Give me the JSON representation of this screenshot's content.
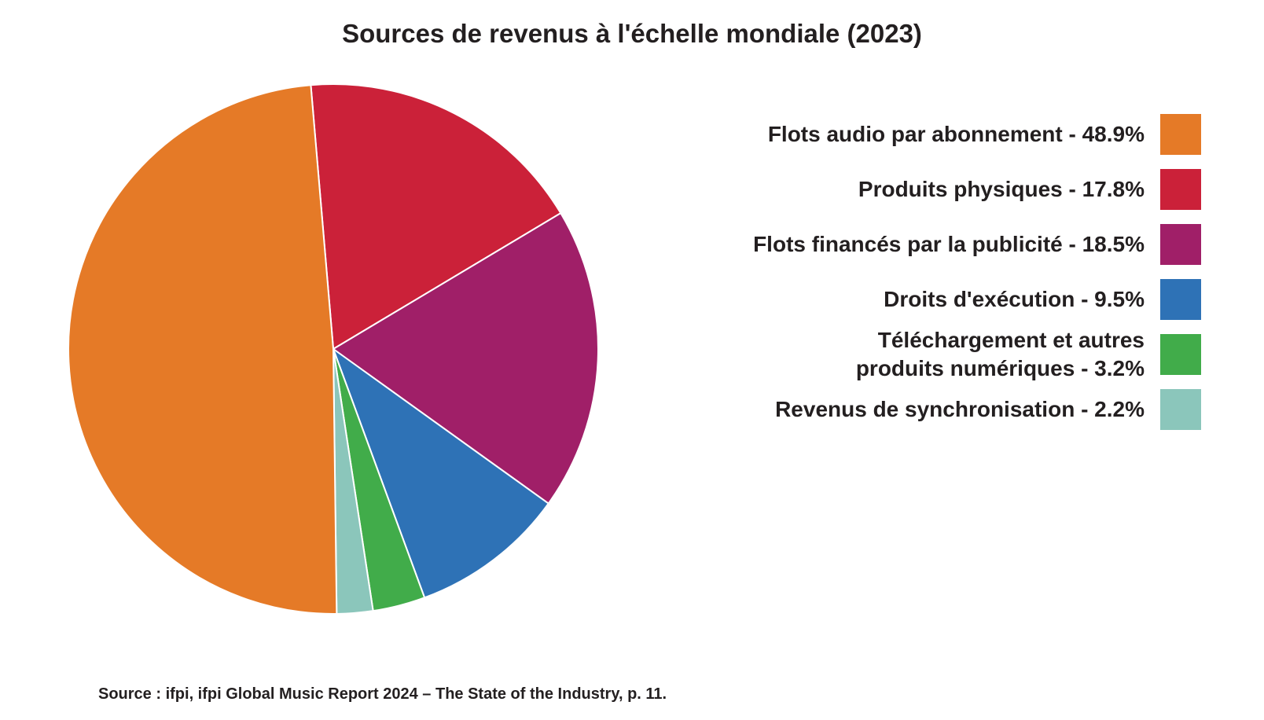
{
  "chart_data": {
    "type": "pie",
    "title": "Sources de revenus à l'échelle mondiale (2023)",
    "slices": [
      {
        "label": "Flots audio par abonnement - 48.9%",
        "value": 48.9,
        "color": "#e57a27"
      },
      {
        "label": "Produits physiques - 17.8%",
        "value": 17.8,
        "color": "#cb2139"
      },
      {
        "label": "Flots financés par la publicité - 18.5%",
        "value": 18.5,
        "color": "#a01f68"
      },
      {
        "label": "Droits d'exécution - 9.5%",
        "value": 9.5,
        "color": "#2e72b6"
      },
      {
        "label": "Téléchargement et autres\nproduits numériques - 3.2%",
        "value": 3.2,
        "color": "#41ac4a"
      },
      {
        "label": "Revenus de synchronisation - 2.2%",
        "value": 2.2,
        "color": "#8bc6bb"
      }
    ],
    "legend_position": "right"
  },
  "footer": {
    "source": "Source : ifpi, ifpi Global Music Report 2024 – The State of the Industry, p. 11."
  }
}
